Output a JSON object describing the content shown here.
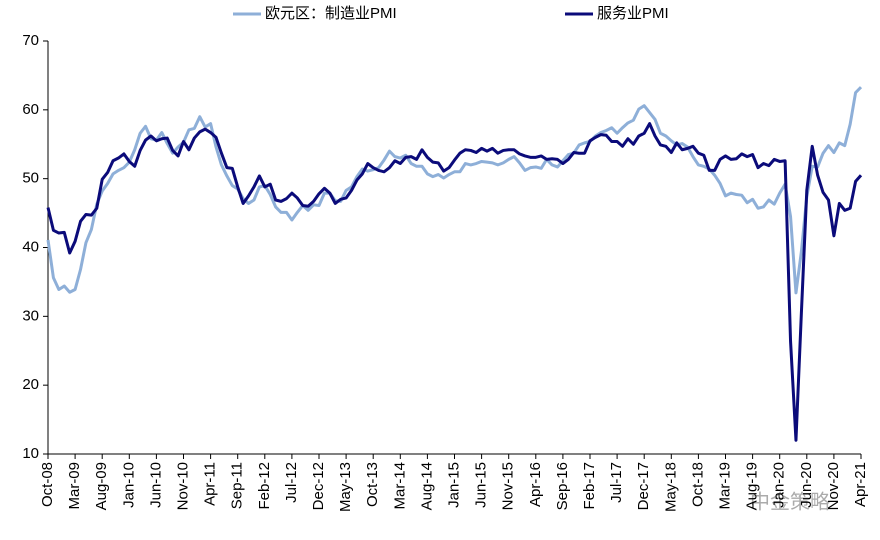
{
  "chart_data": {
    "type": "line",
    "categories": [
      "Oct-08",
      null,
      null,
      null,
      null,
      "Mar-09",
      null,
      null,
      null,
      null,
      "Aug-09",
      null,
      null,
      null,
      null,
      "Jan-10",
      null,
      null,
      null,
      null,
      "Jun-10",
      null,
      null,
      null,
      null,
      "Nov-10",
      null,
      null,
      null,
      null,
      "Apr-11",
      null,
      null,
      null,
      null,
      "Sep-11",
      null,
      null,
      null,
      null,
      "Feb-12",
      null,
      null,
      null,
      null,
      "Jul-12",
      null,
      null,
      null,
      null,
      "Dec-12",
      null,
      null,
      null,
      null,
      "May-13",
      null,
      null,
      null,
      null,
      "Oct-13",
      null,
      null,
      null,
      null,
      "Mar-14",
      null,
      null,
      null,
      null,
      "Aug-14",
      null,
      null,
      null,
      null,
      "Jan-15",
      null,
      null,
      null,
      null,
      "Jun-15",
      null,
      null,
      null,
      null,
      "Nov-15",
      null,
      null,
      null,
      null,
      "Apr-16",
      null,
      null,
      null,
      null,
      "Sep-16",
      null,
      null,
      null,
      null,
      "Feb-17",
      null,
      null,
      null,
      null,
      "Jul-17",
      null,
      null,
      null,
      null,
      "Dec-17",
      null,
      null,
      null,
      null,
      "May-18",
      null,
      null,
      null,
      null,
      "Oct-18",
      null,
      null,
      null,
      null,
      "Mar-19",
      null,
      null,
      null,
      null,
      "Aug-19",
      null,
      null,
      null,
      null,
      "Jan-20",
      null,
      null,
      null,
      null,
      "Jun-20",
      null,
      null,
      null,
      null,
      "Nov-20",
      null,
      null,
      null,
      null,
      "Apr-21"
    ],
    "series": [
      {
        "name": "欧元区：制造业PMI",
        "color": "#8eafd8",
        "values": [
          41.1,
          35.6,
          33.9,
          34.4,
          33.5,
          33.9,
          36.8,
          40.7,
          42.6,
          46.3,
          48.2,
          49.3,
          50.7,
          51.2,
          51.6,
          52.4,
          54.2,
          56.6,
          57.6,
          55.8,
          55.6,
          56.7,
          55.1,
          53.7,
          54.6,
          55.3,
          57.1,
          57.3,
          59.0,
          57.5,
          58.0,
          54.6,
          52.0,
          50.4,
          49.0,
          48.5,
          47.1,
          46.4,
          46.9,
          48.8,
          49.0,
          47.7,
          45.9,
          45.1,
          45.1,
          44.0,
          45.1,
          46.1,
          45.4,
          46.2,
          46.1,
          47.9,
          47.9,
          46.8,
          46.7,
          48.3,
          48.8,
          50.3,
          51.4,
          51.1,
          51.3,
          51.6,
          52.7,
          54.0,
          53.2,
          53.0,
          53.4,
          52.2,
          51.8,
          51.8,
          50.7,
          50.3,
          50.6,
          50.1,
          50.6,
          51.0,
          51.0,
          52.2,
          52.0,
          52.2,
          52.5,
          52.4,
          52.3,
          52.0,
          52.3,
          52.8,
          53.2,
          52.3,
          51.2,
          51.6,
          51.7,
          51.5,
          52.8,
          52.0,
          51.7,
          52.6,
          53.5,
          53.7,
          54.9,
          55.2,
          55.4,
          56.2,
          56.7,
          57.0,
          57.4,
          56.6,
          57.4,
          58.1,
          58.5,
          60.1,
          60.6,
          59.6,
          58.6,
          56.6,
          56.2,
          55.5,
          54.9,
          55.1,
          54.6,
          53.2,
          52.0,
          51.8,
          51.4,
          50.5,
          49.3,
          47.5,
          47.9,
          47.7,
          47.6,
          46.5,
          47.0,
          45.7,
          45.9,
          46.9,
          46.3,
          47.9,
          49.2,
          44.5,
          33.4,
          39.4,
          47.4,
          51.8,
          51.7,
          53.7,
          54.8,
          53.8,
          55.2,
          54.8,
          57.9,
          62.5,
          63.3
        ]
      },
      {
        "name": "服务业PMI",
        "color": "#0b0b7a",
        "values": [
          45.8,
          42.5,
          42.1,
          42.2,
          39.2,
          40.9,
          43.8,
          44.8,
          44.7,
          45.7,
          49.9,
          50.9,
          52.6,
          53.0,
          53.6,
          52.5,
          51.8,
          54.1,
          55.6,
          56.2,
          55.5,
          55.8,
          55.9,
          54.1,
          53.3,
          55.4,
          54.2,
          55.9,
          56.8,
          57.2,
          56.7,
          56.0,
          53.7,
          51.6,
          51.5,
          48.8,
          46.4,
          47.5,
          48.8,
          50.4,
          48.8,
          49.2,
          46.9,
          46.7,
          47.1,
          47.9,
          47.2,
          46.1,
          46.0,
          46.7,
          47.8,
          48.6,
          47.9,
          46.4,
          47.0,
          47.2,
          48.3,
          49.8,
          50.7,
          52.2,
          51.6,
          51.2,
          51.0,
          51.6,
          52.6,
          52.2,
          53.1,
          53.2,
          52.8,
          54.2,
          53.1,
          52.4,
          52.3,
          51.1,
          51.6,
          52.7,
          53.7,
          54.2,
          54.1,
          53.8,
          54.4,
          54.0,
          54.4,
          53.7,
          54.1,
          54.2,
          54.2,
          53.6,
          53.3,
          53.1,
          53.1,
          53.3,
          52.8,
          52.9,
          52.8,
          52.2,
          52.8,
          53.8,
          53.7,
          53.7,
          55.5,
          56.0,
          56.4,
          56.3,
          55.4,
          55.4,
          54.7,
          55.8,
          55.0,
          56.2,
          56.6,
          58.0,
          56.2,
          54.9,
          54.7,
          53.8,
          55.2,
          54.2,
          54.4,
          54.7,
          53.7,
          53.4,
          51.2,
          51.2,
          52.8,
          53.3,
          52.8,
          52.9,
          53.6,
          53.2,
          53.5,
          51.6,
          52.2,
          51.9,
          52.8,
          52.5,
          52.6,
          26.4,
          12.0,
          30.5,
          48.3,
          54.7,
          50.5,
          48.0,
          46.9,
          41.7,
          46.4,
          45.4,
          45.7,
          49.6,
          50.5
        ]
      }
    ],
    "ylim": [
      10,
      70
    ],
    "yticks": [
      10,
      20,
      30,
      40,
      50,
      60,
      70
    ],
    "legend": "top",
    "watermark": "中金策略"
  }
}
